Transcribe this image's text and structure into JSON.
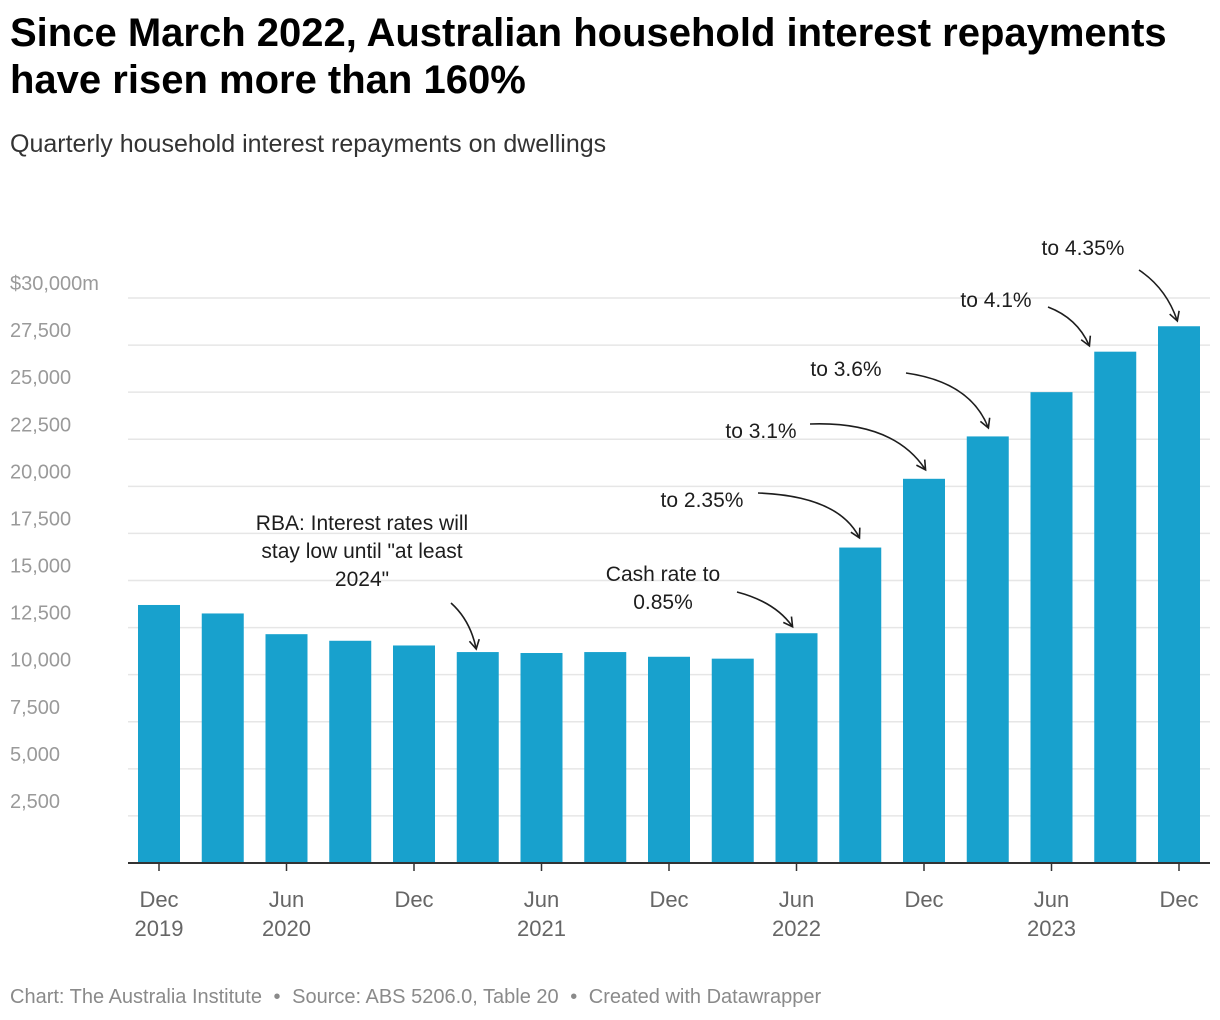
{
  "header": {
    "title": "Since March 2022, Australian household interest repayments have risen more than 160%",
    "subtitle": "Quarterly household interest repayments on dwellings"
  },
  "footer": {
    "credit": "Chart: The Australia Institute",
    "source": "Source: ABS 5206.0, Table 20",
    "tool": "Created with Datawrapper",
    "separator": "•"
  },
  "colors": {
    "bar": "#18a1cd",
    "grid": "#e6e6e6",
    "axis": "#333333",
    "tick_text": "#9a9a9a",
    "x_tick_text": "#666666",
    "annotation": "#1d1d1d"
  },
  "chart_data": {
    "type": "bar",
    "title": "Since March 2022, Australian household interest repayments have risen more than 160%",
    "subtitle": "Quarterly household interest repayments on dwellings",
    "categories": [
      "Dec 2019",
      "Mar 2020",
      "Jun 2020",
      "Sep 2020",
      "Dec 2020",
      "Mar 2021",
      "Jun 2021",
      "Sep 2021",
      "Dec 2021",
      "Mar 2022",
      "Jun 2022",
      "Sep 2022",
      "Dec 2022",
      "Mar 2023",
      "Jun 2023",
      "Sep 2023",
      "Dec 2023"
    ],
    "values": [
      13700,
      13250,
      12150,
      11800,
      11550,
      11200,
      11150,
      11200,
      10950,
      10850,
      12200,
      16750,
      20400,
      22650,
      25000,
      27150,
      28500
    ],
    "ylim": [
      0,
      30000
    ],
    "yticks": [
      {
        "value": 2500,
        "label": "2,500"
      },
      {
        "value": 5000,
        "label": "5,000"
      },
      {
        "value": 7500,
        "label": "7,500"
      },
      {
        "value": 10000,
        "label": "10,000"
      },
      {
        "value": 12500,
        "label": "12,500"
      },
      {
        "value": 15000,
        "label": "15,000"
      },
      {
        "value": 17500,
        "label": "17,500"
      },
      {
        "value": 20000,
        "label": "20,000"
      },
      {
        "value": 22500,
        "label": "22,500"
      },
      {
        "value": 25000,
        "label": "25,000"
      },
      {
        "value": 27500,
        "label": "27,500"
      },
      {
        "value": 30000,
        "label": "$30,000m"
      }
    ],
    "xticks": [
      {
        "index": 0,
        "lines": [
          "Dec",
          "2019"
        ]
      },
      {
        "index": 2,
        "lines": [
          "Jun",
          "2020"
        ]
      },
      {
        "index": 4,
        "lines": [
          "Dec"
        ]
      },
      {
        "index": 6,
        "lines": [
          "Jun",
          "2021"
        ]
      },
      {
        "index": 8,
        "lines": [
          "Dec"
        ]
      },
      {
        "index": 10,
        "lines": [
          "Jun",
          "2022"
        ]
      },
      {
        "index": 12,
        "lines": [
          "Dec"
        ]
      },
      {
        "index": 14,
        "lines": [
          "Jun",
          "2023"
        ]
      },
      {
        "index": 16,
        "lines": [
          "Dec"
        ]
      }
    ],
    "grid": true,
    "legend": "none",
    "annotations": [
      {
        "target": 5,
        "lines": [
          "RBA: Interest rates will",
          "stay low until \"at least",
          "2024\""
        ]
      },
      {
        "target": 10,
        "lines": [
          "Cash rate to",
          "0.85%"
        ]
      },
      {
        "target": 11,
        "lines": [
          "to 2.35%"
        ]
      },
      {
        "target": 12,
        "lines": [
          "to 3.1%"
        ]
      },
      {
        "target": 13,
        "lines": [
          "to 3.6%"
        ]
      },
      {
        "target": 15,
        "lines": [
          "to 4.1%"
        ]
      },
      {
        "target": 16,
        "lines": [
          "to 4.35%"
        ]
      }
    ]
  }
}
